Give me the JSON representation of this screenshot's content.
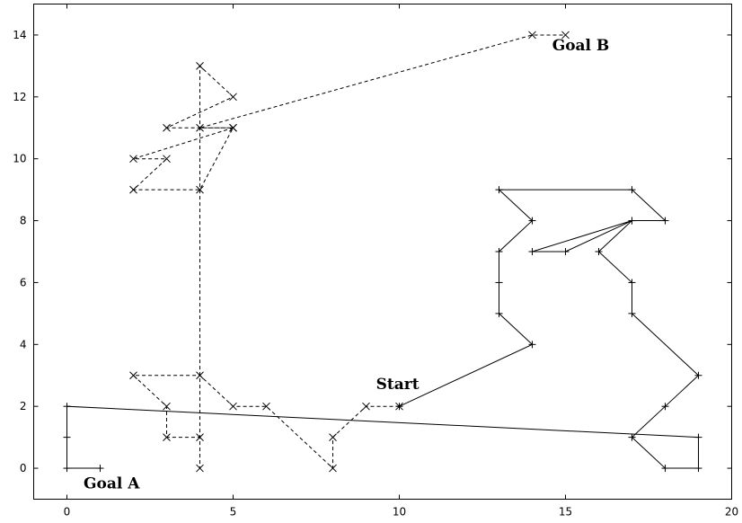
{
  "chart_data": {
    "type": "line",
    "title": "",
    "xlabel": "",
    "ylabel": "",
    "xlim": [
      -1,
      20
    ],
    "ylim": [
      -1,
      15
    ],
    "x_ticks": [
      0,
      5,
      10,
      15,
      20
    ],
    "y_ticks": [
      0,
      2,
      4,
      6,
      8,
      10,
      12,
      14
    ],
    "grid": false,
    "legend": "none",
    "series": [
      {
        "style": "solid",
        "marker": "plus",
        "color": "#000000",
        "points": [
          [
            10,
            2
          ],
          [
            14,
            4
          ],
          [
            13,
            5
          ],
          [
            13,
            6
          ],
          [
            13,
            7
          ],
          [
            14,
            8
          ],
          [
            13,
            9
          ],
          [
            17,
            9
          ],
          [
            18,
            8
          ],
          [
            17,
            8
          ],
          [
            14,
            7
          ],
          [
            15,
            7
          ],
          [
            17,
            8
          ],
          [
            16,
            7
          ],
          [
            17,
            6
          ],
          [
            17,
            5
          ],
          [
            19,
            3
          ],
          [
            18,
            2
          ],
          [
            17,
            1
          ],
          [
            18,
            0
          ],
          [
            19,
            0
          ],
          [
            19,
            1
          ],
          [
            0,
            2
          ],
          [
            0,
            1
          ],
          [
            0,
            0
          ],
          [
            1,
            0
          ]
        ]
      },
      {
        "style": "dashed",
        "marker": "x",
        "color": "#000000",
        "points": [
          [
            10,
            2
          ],
          [
            9,
            2
          ],
          [
            8,
            1
          ],
          [
            8,
            0
          ],
          [
            6,
            2
          ],
          [
            5,
            2
          ],
          [
            4,
            3
          ],
          [
            2,
            3
          ],
          [
            3,
            2
          ],
          [
            3,
            1
          ],
          [
            4,
            1
          ],
          [
            4,
            0
          ],
          [
            4,
            13
          ],
          [
            5,
            12
          ],
          [
            3,
            11
          ],
          [
            5,
            11
          ],
          [
            4,
            9
          ],
          [
            2,
            9
          ],
          [
            3,
            10
          ],
          [
            2,
            10
          ],
          [
            5,
            11
          ],
          [
            4,
            11
          ],
          [
            14,
            14
          ],
          [
            15,
            14
          ]
        ]
      }
    ],
    "annotations": [
      {
        "text": "Start",
        "x": 9.3,
        "y": 2.55
      },
      {
        "text": "Goal A",
        "x": 0.5,
        "y": -0.65
      },
      {
        "text": "Goal B",
        "x": 14.6,
        "y": 13.5
      }
    ]
  }
}
